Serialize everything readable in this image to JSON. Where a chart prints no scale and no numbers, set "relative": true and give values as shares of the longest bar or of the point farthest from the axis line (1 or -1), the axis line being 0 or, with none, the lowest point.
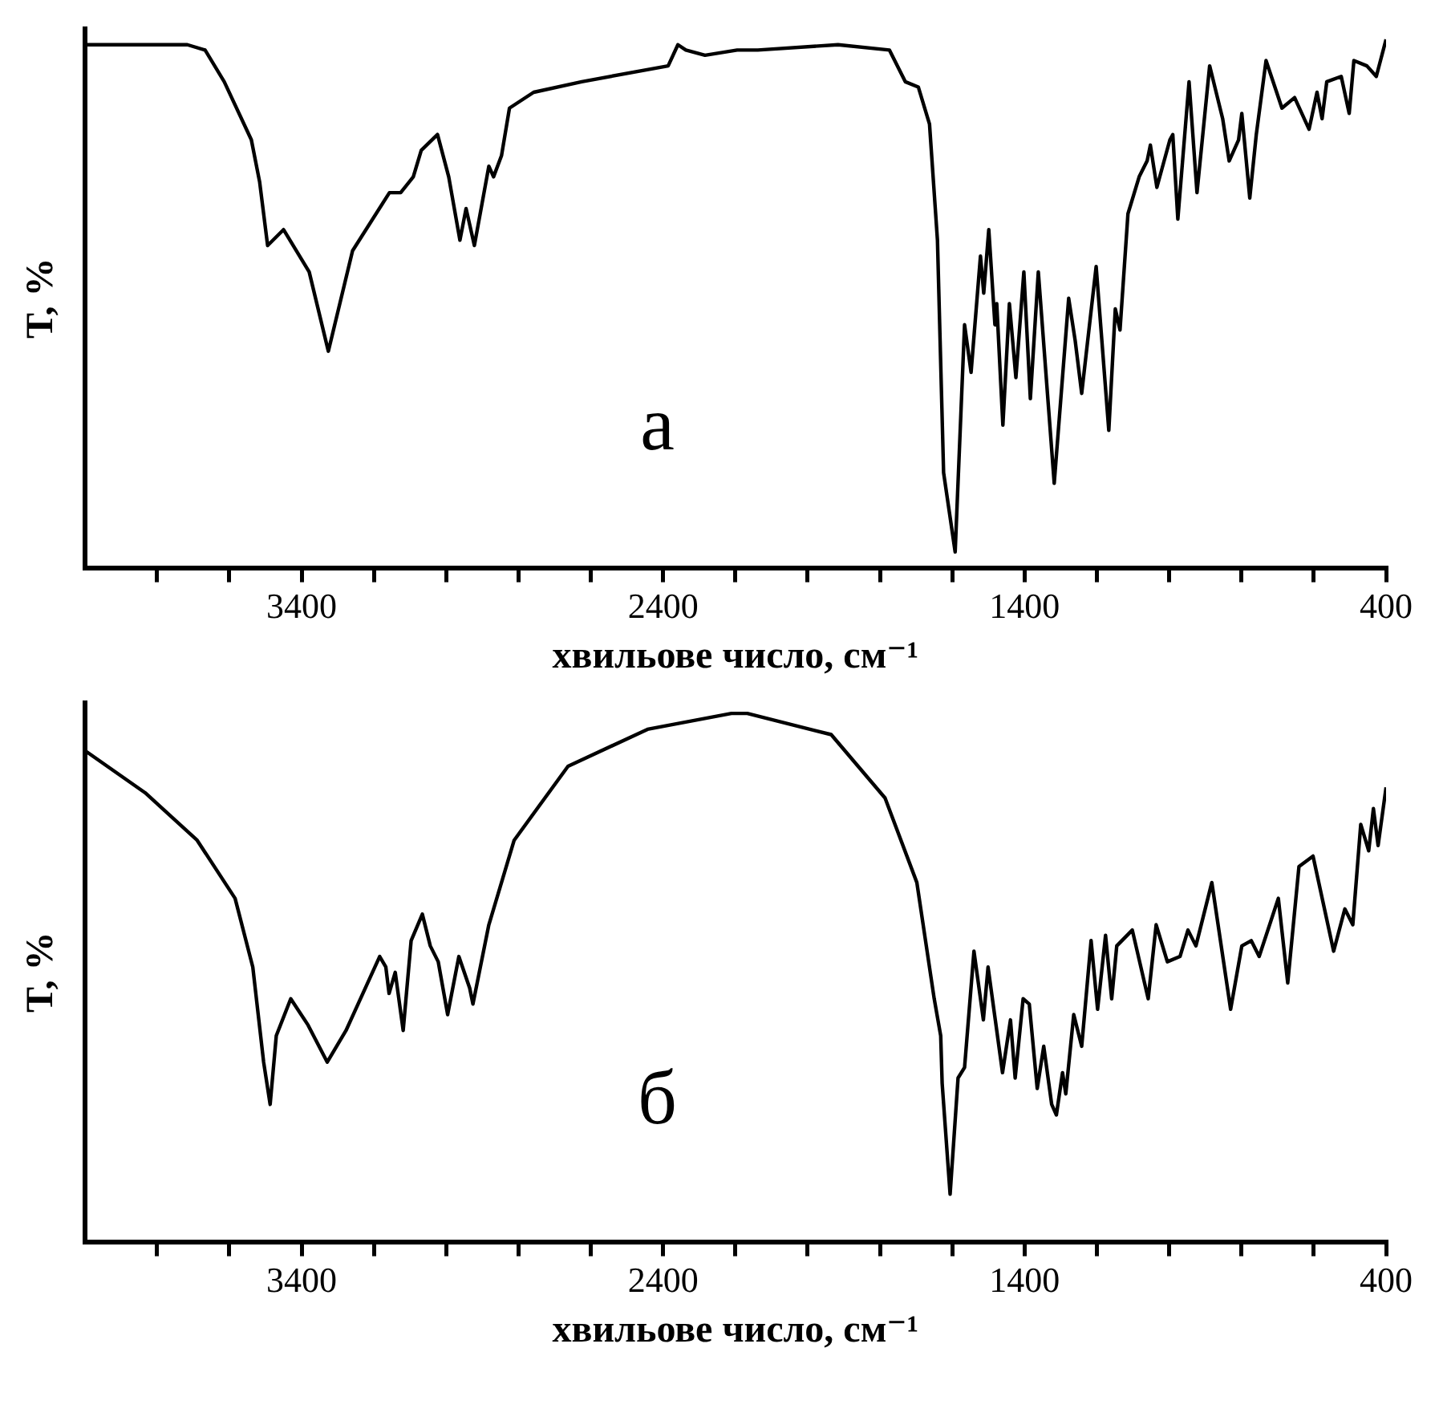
{
  "chart_data": [
    {
      "type": "line",
      "relative": true,
      "ylabel": "T, %",
      "xlabel": "хвильове число, см⁻¹",
      "annotations": [
        "а"
      ],
      "grid": false,
      "legend": false,
      "marker": "none",
      "line_style": "solid",
      "tick_labels": "x",
      "xlim": [
        4000,
        400
      ],
      "xticks": [
        {
          "value": 3800,
          "label": null
        },
        {
          "value": 3600,
          "label": null
        },
        3400,
        {
          "value": 3200,
          "label": null
        },
        {
          "value": 3000,
          "label": null
        },
        {
          "value": 2800,
          "label": null
        },
        {
          "value": 2600,
          "label": null
        },
        2400,
        {
          "value": 2200,
          "label": null
        },
        {
          "value": 2000,
          "label": null
        },
        {
          "value": 1800,
          "label": null
        },
        {
          "value": 1600,
          "label": null
        },
        1400,
        {
          "value": 1200,
          "label": null
        },
        {
          "value": 1000,
          "label": null
        },
        {
          "value": 800,
          "label": null
        },
        {
          "value": 600,
          "label": null
        },
        400
      ],
      "series": [
        {
          "color": "#000000",
          "x": [
            4000,
            3716,
            3667,
            3614,
            3539,
            3516,
            3494,
            3450,
            3379,
            3326,
            3259,
            3157,
            3126,
            3091,
            3069,
            3024,
            2993,
            2962,
            2945,
            2922,
            2882,
            2869,
            2847,
            2825,
            2758,
            2625,
            2386,
            2359,
            2337,
            2284,
            2195,
            2138,
            1916,
            1774,
            1730,
            1694,
            1663,
            1641,
            1624,
            1592,
            1566,
            1548,
            1522,
            1513,
            1499,
            1482,
            1477,
            1460,
            1442,
            1424,
            1402,
            1384,
            1362,
            1318,
            1278,
            1260,
            1242,
            1202,
            1167,
            1149,
            1136,
            1114,
            1083,
            1061,
            1052,
            1034,
            998,
            990,
            976,
            945,
            923,
            888,
            852,
            834,
            808,
            799,
            777,
            759,
            732,
            688,
            653,
            613,
            591,
            577,
            564,
            524,
            502,
            489,
            453,
            427,
            400
          ],
          "values": [
            0.99,
            0.99,
            0.98,
            0.92,
            0.81,
            0.73,
            0.61,
            0.64,
            0.56,
            0.41,
            0.6,
            0.71,
            0.71,
            0.74,
            0.79,
            0.82,
            0.74,
            0.62,
            0.68,
            0.61,
            0.76,
            0.74,
            0.78,
            0.87,
            0.9,
            0.92,
            0.95,
            0.99,
            0.98,
            0.97,
            0.98,
            0.98,
            0.99,
            0.98,
            0.92,
            0.91,
            0.84,
            0.62,
            0.18,
            0.03,
            0.46,
            0.37,
            0.59,
            0.52,
            0.64,
            0.46,
            0.5,
            0.27,
            0.5,
            0.36,
            0.56,
            0.32,
            0.56,
            0.16,
            0.51,
            0.43,
            0.33,
            0.57,
            0.26,
            0.49,
            0.45,
            0.67,
            0.74,
            0.77,
            0.8,
            0.72,
            0.81,
            0.82,
            0.66,
            0.92,
            0.71,
            0.95,
            0.85,
            0.77,
            0.81,
            0.86,
            0.7,
            0.82,
            0.96,
            0.87,
            0.89,
            0.83,
            0.9,
            0.85,
            0.92,
            0.93,
            0.86,
            0.96,
            0.95,
            0.93,
            1
          ]
        }
      ]
    },
    {
      "type": "line",
      "relative": true,
      "ylabel": "T, %",
      "xlabel": "хвильове число, см⁻¹",
      "annotations": [
        "б"
      ],
      "grid": false,
      "legend": false,
      "marker": "none",
      "line_style": "solid",
      "tick_labels": "x",
      "xlim": [
        4000,
        400
      ],
      "xticks": [
        {
          "value": 3800,
          "label": null
        },
        {
          "value": 3600,
          "label": null
        },
        3400,
        {
          "value": 3200,
          "label": null
        },
        {
          "value": 3000,
          "label": null
        },
        {
          "value": 2800,
          "label": null
        },
        {
          "value": 2600,
          "label": null
        },
        2400,
        {
          "value": 2200,
          "label": null
        },
        {
          "value": 2000,
          "label": null
        },
        {
          "value": 1800,
          "label": null
        },
        {
          "value": 1600,
          "label": null
        },
        1400,
        {
          "value": 1200,
          "label": null
        },
        {
          "value": 1000,
          "label": null
        },
        {
          "value": 800,
          "label": null
        },
        {
          "value": 600,
          "label": null
        },
        400
      ],
      "series": [
        {
          "color": "#000000",
          "x": [
            4000,
            3833,
            3689,
            3584,
            3535,
            3505,
            3487,
            3470,
            3430,
            3382,
            3329,
            3277,
            3184,
            3167,
            3158,
            3141,
            3119,
            3097,
            3066,
            3044,
            3022,
            2996,
            2965,
            2935,
            2926,
            2882,
            2812,
            2663,
            2443,
            2211,
            2167,
            1935,
            1786,
            1698,
            1650,
            1632,
            1628,
            1606,
            1584,
            1566,
            1540,
            1514,
            1501,
            1461,
            1439,
            1426,
            1404,
            1387,
            1365,
            1347,
            1325,
            1312,
            1295,
            1286,
            1264,
            1242,
            1216,
            1198,
            1176,
            1159,
            1145,
            1102,
            1058,
            1036,
            1005,
            970,
            948,
            926,
            882,
            830,
            799,
            773,
            751,
            698,
            672,
            641,
            602,
            545,
            514,
            492,
            470,
            448,
            435,
            422,
            400
          ],
          "values": [
            0.93,
            0.85,
            0.76,
            0.65,
            0.52,
            0.34,
            0.26,
            0.39,
            0.46,
            0.41,
            0.34,
            0.4,
            0.54,
            0.52,
            0.47,
            0.51,
            0.4,
            0.57,
            0.62,
            0.56,
            0.53,
            0.43,
            0.54,
            0.48,
            0.45,
            0.6,
            0.76,
            0.9,
            0.97,
            1,
            1,
            0.96,
            0.84,
            0.68,
            0.46,
            0.39,
            0.3,
            0.09,
            0.31,
            0.33,
            0.55,
            0.42,
            0.52,
            0.32,
            0.42,
            0.31,
            0.46,
            0.45,
            0.29,
            0.37,
            0.26,
            0.24,
            0.32,
            0.28,
            0.43,
            0.37,
            0.57,
            0.44,
            0.58,
            0.46,
            0.56,
            0.59,
            0.46,
            0.6,
            0.53,
            0.54,
            0.59,
            0.56,
            0.68,
            0.44,
            0.56,
            0.57,
            0.54,
            0.65,
            0.49,
            0.71,
            0.73,
            0.55,
            0.63,
            0.6,
            0.79,
            0.74,
            0.82,
            0.75,
            0.86
          ]
        }
      ]
    }
  ]
}
